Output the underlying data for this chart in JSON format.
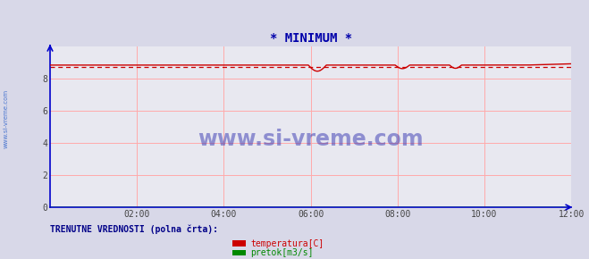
{
  "title": "* MINIMUM *",
  "title_color": "#0000aa",
  "bg_color": "#d8d8e8",
  "plot_bg_color": "#e8e8f0",
  "grid_color": "#ffaaaa",
  "axis_color": "#0000cc",
  "ylim": [
    0,
    10
  ],
  "xlim": [
    0,
    864
  ],
  "temp_color": "#cc0000",
  "flow_color": "#008800",
  "watermark_text": "www.si-vreme.com",
  "watermark_color": "#2222aa",
  "side_text": "www.si-vreme.com",
  "side_text_color": "#3366cc",
  "legend_label1": "temperatura[C]",
  "legend_label2": "pretok[m3/s]",
  "legend_text": "TRENUTNE VREDNOSTI (polna črta):",
  "temp_base": 8.85,
  "temp_min_level": 8.75,
  "flow_val": 0.02
}
